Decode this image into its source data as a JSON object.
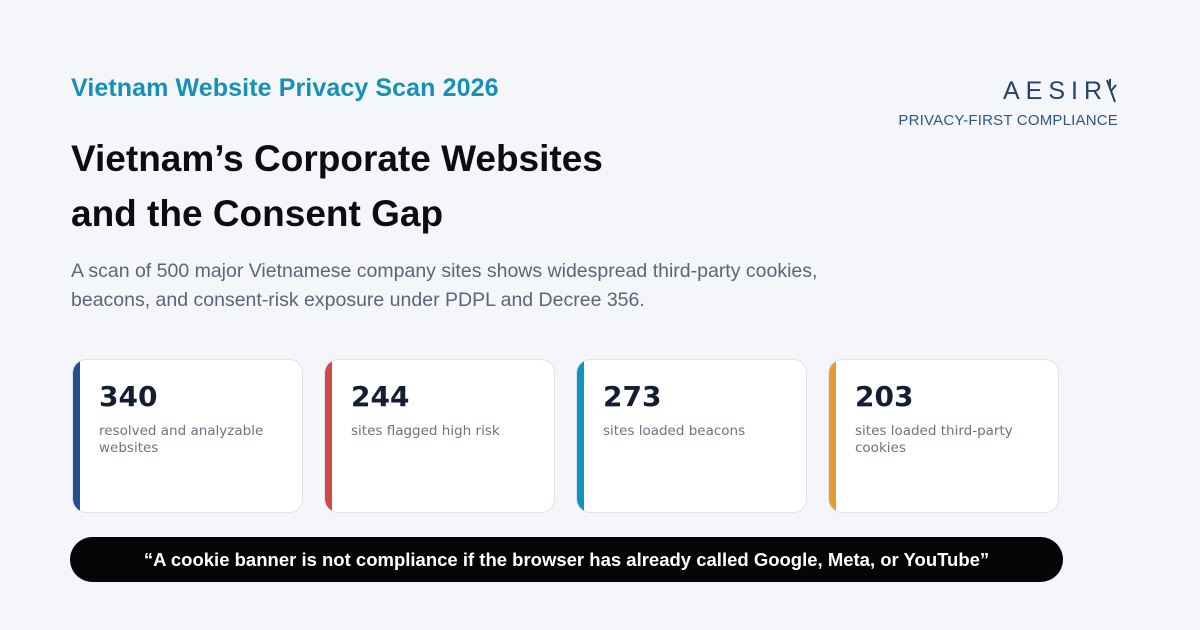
{
  "header": {
    "eyebrow": "Vietnam Website Privacy Scan 2026",
    "title_line1": "Vietnam’s Corporate Websites",
    "title_line2": "and the Consent Gap",
    "subtitle_line1": "A scan of 500 major Vietnamese company sites shows widespread third-party cookies,",
    "subtitle_line2": "beacons, and consent-risk exposure under PDPL and Decree 356."
  },
  "brand": {
    "wordmark": "AESIR",
    "tagline": "PRIVACY-FIRST COMPLIANCE",
    "icon": "aesir-logo-icon",
    "color": "#24436a"
  },
  "stats": [
    {
      "value": "340",
      "label": "resolved and analyzable websites",
      "accent": "#244e91"
    },
    {
      "value": "244",
      "label": "sites flagged high risk",
      "accent": "#d2474c"
    },
    {
      "value": "273",
      "label": "sites loaded beacons",
      "accent": "#1094bf"
    },
    {
      "value": "203",
      "label": "sites loaded third-party cookies",
      "accent": "#e49c37"
    }
  ],
  "quote": "“A cookie banner is not compliance if the browser has already called Google, Meta, or YouTube”",
  "colors": {
    "eyebrow": "#1591b9",
    "background": "#f5f6fa",
    "quote_background": "#050507"
  }
}
